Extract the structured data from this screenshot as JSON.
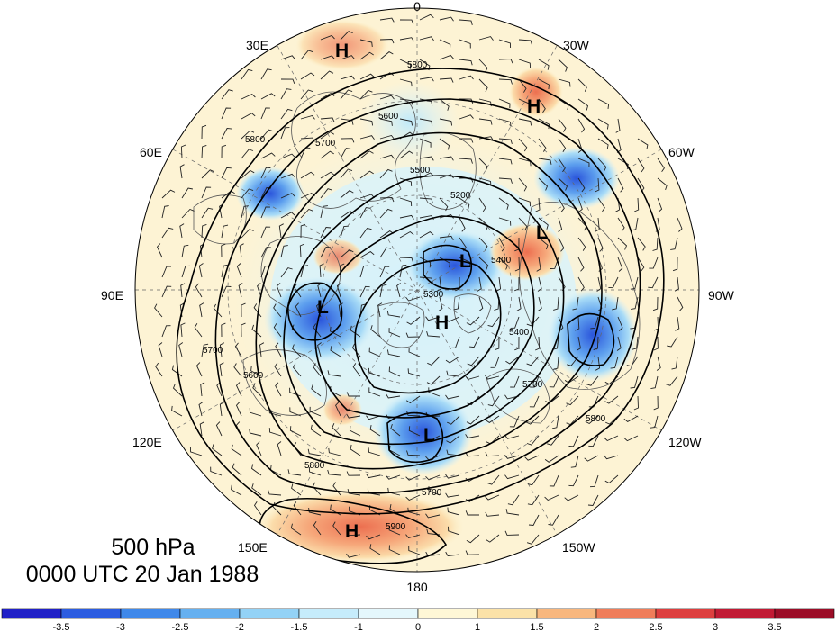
{
  "title": {
    "level": "500 hPa",
    "datetime": "0000 UTC 20 Jan 1988"
  },
  "longitude_labels": [
    "0",
    "30W",
    "60W",
    "90W",
    "120W",
    "150W",
    "180",
    "150E",
    "120E",
    "90E",
    "60E",
    "30E"
  ],
  "pressure_centers": [
    {
      "label": "H",
      "name": "high-north-atlantic"
    },
    {
      "label": "H",
      "name": "high-europe"
    },
    {
      "label": "H",
      "name": "high-north-pole"
    },
    {
      "label": "H",
      "name": "high-north-pacific"
    },
    {
      "label": "L",
      "name": "low-siberia"
    },
    {
      "label": "L",
      "name": "low-arctic-ocean"
    },
    {
      "label": "L",
      "name": "low-bering"
    },
    {
      "label": "L",
      "name": "low-hudson-bay"
    }
  ],
  "contour_labels": [
    "5800",
    "5700",
    "5600",
    "5500",
    "5400",
    "5300",
    "5200",
    "5900"
  ],
  "colorbar": {
    "tick_labels": [
      "-3.5",
      "-3",
      "-2.5",
      "-2",
      "-1.5",
      "-1",
      "0",
      "1",
      "1.5",
      "2",
      "2.5",
      "3",
      "3.5"
    ],
    "colors": [
      "#2121c7",
      "#2c5ce0",
      "#3f88ea",
      "#65b0f0",
      "#93d2f6",
      "#c6ecfb",
      "#e4f7fc",
      "#fef7d6",
      "#fbe2a8",
      "#f8b77e",
      "#ef7d5a",
      "#dd3f3f",
      "#c11a34",
      "#9b0d27"
    ]
  },
  "colors": {
    "negative_anomaly": "#4f8ff0",
    "positive_anomaly": "#f39a6a",
    "land_outline": "#555555",
    "contour": "#000000"
  }
}
